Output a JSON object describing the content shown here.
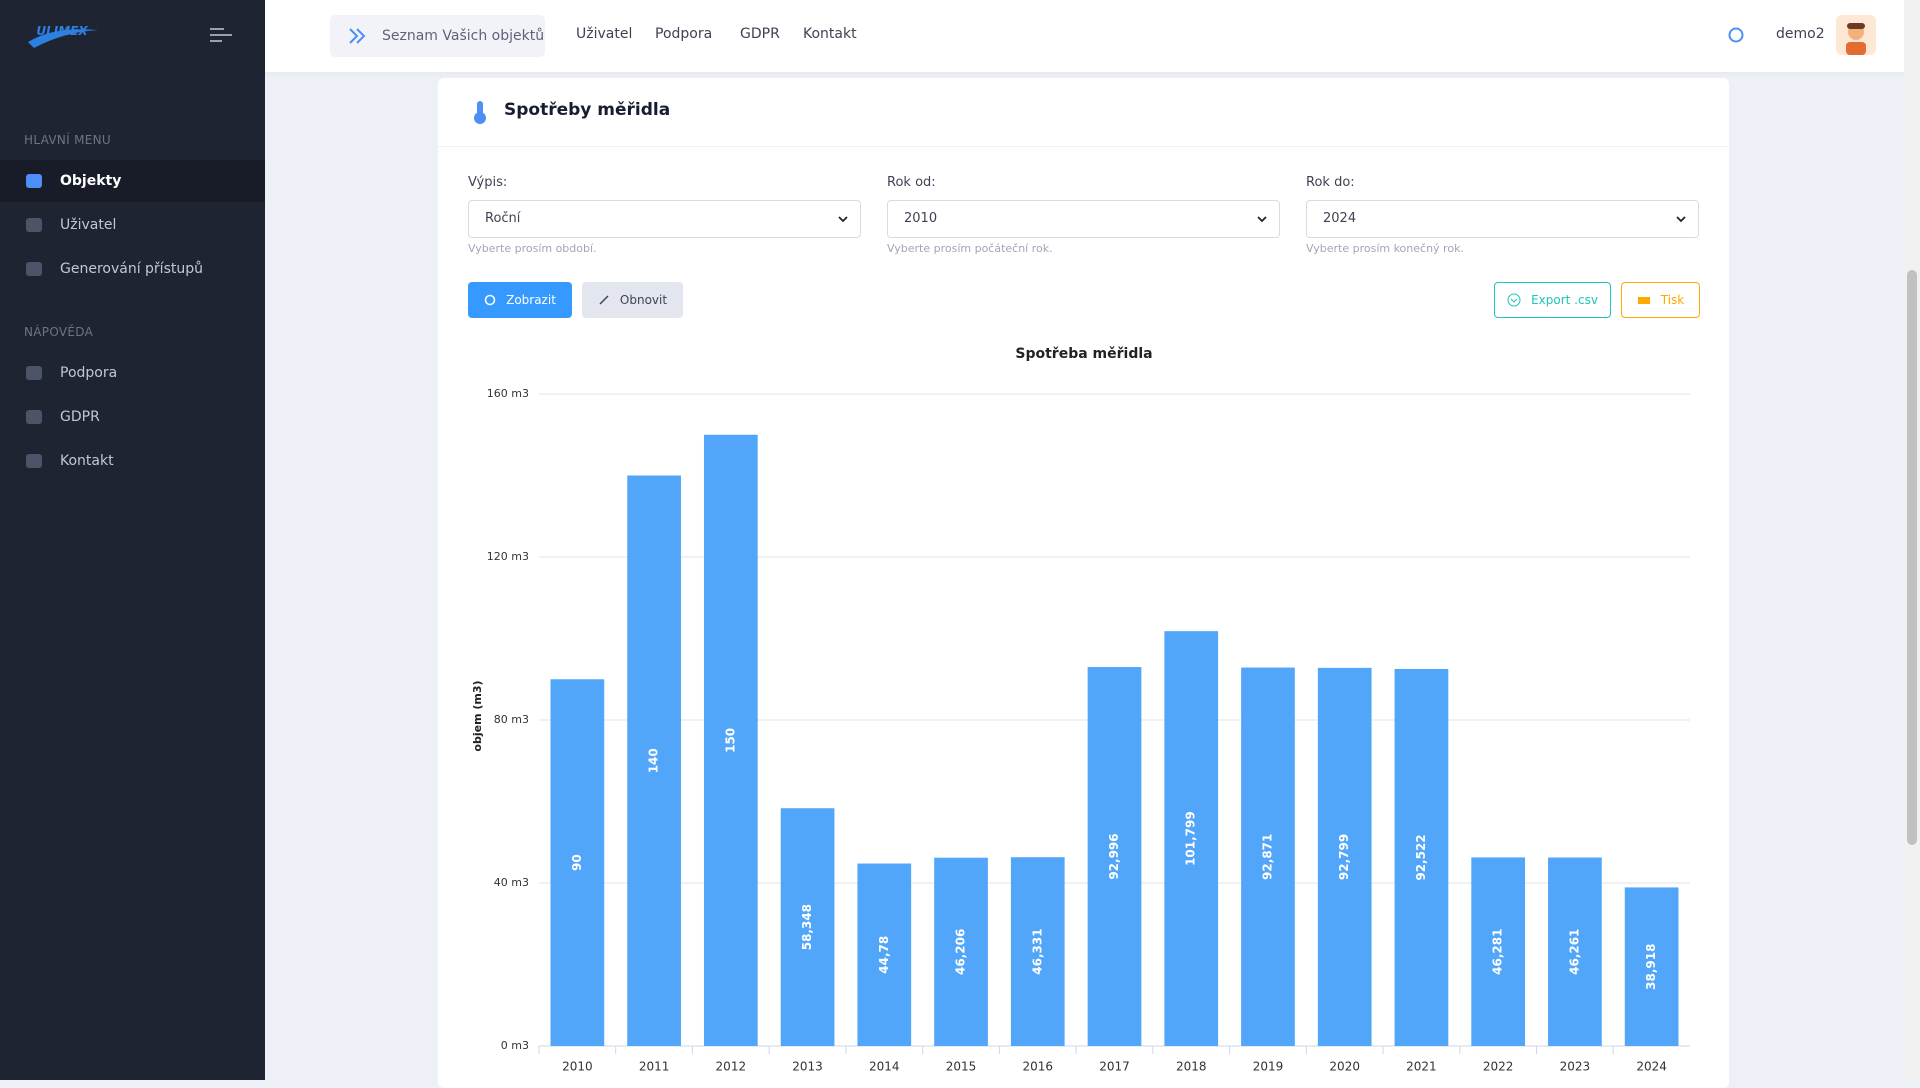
{
  "sidebar": {
    "logo": "ULIMEX",
    "menu_heading": "HLAVNÍ MENU",
    "menu": [
      "Objekty",
      "Uživatel",
      "Generování přístupů"
    ],
    "help_heading": "NÁPOVĚDA",
    "help": [
      "Podpora",
      "GDPR",
      "Kontakt"
    ]
  },
  "topbar": {
    "breadcrumb": "Seznam Vašich objektů",
    "links": [
      "Uživatel",
      "Podpora",
      "GDPR",
      "Kontakt"
    ],
    "user": "demo2"
  },
  "card": {
    "title": "Spotřeby měřidla",
    "filters": [
      {
        "label": "Výpis:",
        "value": "Roční",
        "hint": "Vyberte prosím období."
      },
      {
        "label": "Rok od:",
        "value": "2010",
        "hint": "Vyberte prosím počáteční rok."
      },
      {
        "label": "Rok do:",
        "value": "2024",
        "hint": "Vyberte prosím konečný rok."
      }
    ],
    "buttons": {
      "show": "Zobrazit",
      "reset": "Obnovit",
      "export": "Export .csv",
      "print": "Tisk"
    }
  },
  "chart_data": {
    "type": "bar",
    "title": "Spotřeba měřidla",
    "y_label": "objem (m3)",
    "categories": [
      "2010",
      "2011",
      "2012",
      "2013",
      "2014",
      "2015",
      "2016",
      "2017",
      "2018",
      "2019",
      "2020",
      "2021",
      "2022",
      "2023",
      "2024"
    ],
    "values": [
      90,
      140,
      150,
      58.348,
      44.78,
      46.206,
      46.331,
      92.996,
      101.799,
      92.871,
      92.799,
      92.522,
      46.281,
      46.261,
      38.918
    ],
    "value_labels": [
      "90",
      "140",
      "150",
      "58,348",
      "44,78",
      "46,206",
      "46,331",
      "92,996",
      "101,799",
      "92,871",
      "92,799",
      "92,522",
      "46,281",
      "46,261",
      "38,918"
    ],
    "color": "#52a6fa",
    "ylim": [
      0,
      160
    ],
    "yticks": [
      {
        "value": 0,
        "label": "0 m3"
      },
      {
        "value": 40,
        "label": "40 m3"
      },
      {
        "value": 80,
        "label": "80 m3"
      },
      {
        "value": 120,
        "label": "120 m3"
      },
      {
        "value": 160,
        "label": "160 m3"
      }
    ],
    "grid": true
  }
}
